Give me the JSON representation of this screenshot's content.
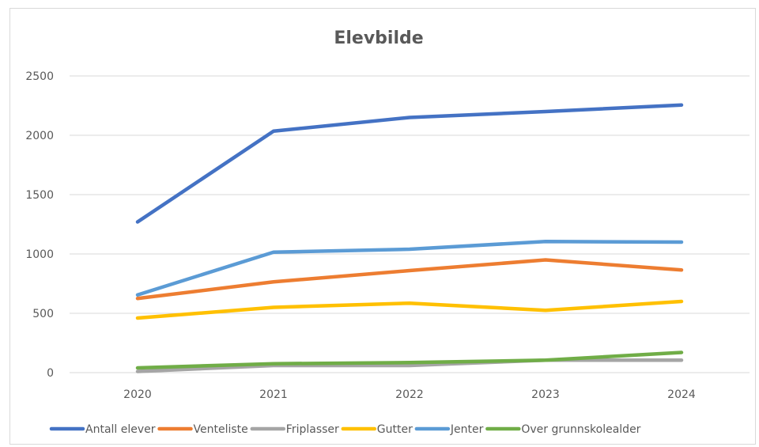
{
  "chart_data": {
    "type": "line",
    "title": "Elevbilde",
    "categories": [
      "2020",
      "2021",
      "2022",
      "2023",
      "2024"
    ],
    "ylim": [
      0,
      2500
    ],
    "yticks": [
      0,
      500,
      1000,
      1500,
      2000,
      2500
    ],
    "grid": true,
    "legend_position": "bottom",
    "series": [
      {
        "name": "Antall elever",
        "color": "#4472C4",
        "values": [
          1270,
          2035,
          2150,
          2200,
          2255
        ]
      },
      {
        "name": "Venteliste",
        "color": "#ED7D31",
        "values": [
          625,
          765,
          860,
          950,
          865
        ]
      },
      {
        "name": "Friplasser",
        "color": "#A5A5A5",
        "values": [
          10,
          60,
          60,
          105,
          105
        ]
      },
      {
        "name": "Gutter",
        "color": "#FFC000",
        "values": [
          460,
          550,
          585,
          525,
          600
        ]
      },
      {
        "name": "Jenter",
        "color": "#5B9BD5",
        "values": [
          655,
          1015,
          1040,
          1105,
          1100
        ]
      },
      {
        "name": "Over grunnskolealder",
        "color": "#70AD47",
        "values": [
          40,
          75,
          85,
          105,
          170
        ]
      }
    ]
  }
}
